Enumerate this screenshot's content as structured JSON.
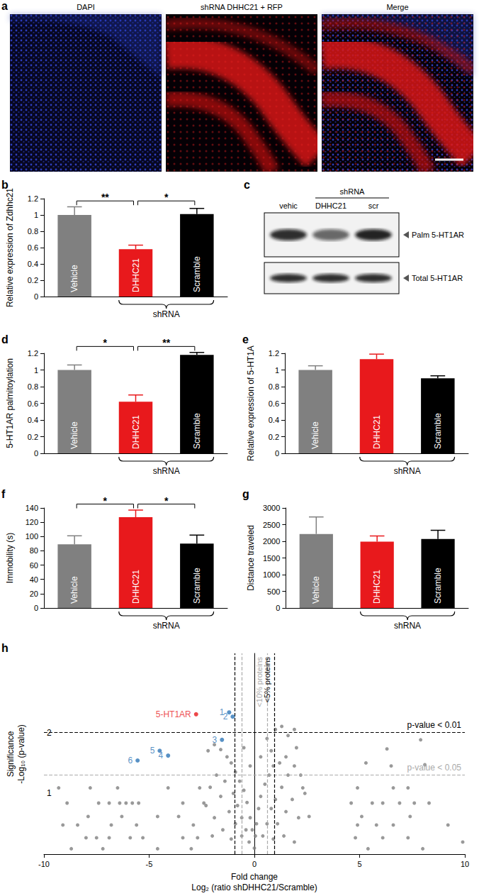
{
  "panels": {
    "a": {
      "letter": "a",
      "images": [
        {
          "label": "DAPI"
        },
        {
          "label": "shRNA DHHC21 + RFP"
        },
        {
          "label": "Merge"
        }
      ]
    },
    "c": {
      "letter": "c",
      "lanes": [
        "vehic",
        "DHHC21",
        "scr"
      ],
      "group": {
        "label": "shRNA",
        "lanes": [
          "DHHC21",
          "scr"
        ]
      },
      "bands": [
        "Palm 5-HT1AR",
        "Total 5-HT1AR"
      ]
    }
  },
  "chart_data": [
    {
      "panel": "b",
      "type": "bar",
      "ylabel": "Relative expression of Zdhhc21",
      "categories": [
        "Vehicle",
        "DHHC21",
        "Scramble"
      ],
      "values": [
        1.0,
        0.58,
        1.01
      ],
      "errors": [
        0.1,
        0.05,
        0.07
      ],
      "colors": [
        "#808080",
        "#e8191c",
        "#000000"
      ],
      "group": {
        "label": "shRNA",
        "categories": [
          "DHHC21",
          "Scramble"
        ]
      },
      "significance": [
        {
          "pair": [
            "Vehicle",
            "DHHC21"
          ],
          "label": "**"
        },
        {
          "pair": [
            "DHHC21",
            "Scramble"
          ],
          "label": "*"
        }
      ],
      "ylim": [
        0,
        1.2
      ],
      "yticks": [
        0,
        0.2,
        0.4,
        0.6,
        0.8,
        1,
        1.2
      ]
    },
    {
      "panel": "d",
      "type": "bar",
      "ylabel": "5-HT1AR palmitoylation",
      "categories": [
        "Vehicle",
        "DHHC21",
        "Scramble"
      ],
      "values": [
        1.0,
        0.62,
        1.18
      ],
      "errors": [
        0.06,
        0.08,
        0.03
      ],
      "colors": [
        "#808080",
        "#e8191c",
        "#000000"
      ],
      "group": {
        "label": "shRNA",
        "categories": [
          "DHHC21",
          "Scramble"
        ]
      },
      "significance": [
        {
          "pair": [
            "Vehicle",
            "DHHC21"
          ],
          "label": "*"
        },
        {
          "pair": [
            "DHHC21",
            "Scramble"
          ],
          "label": "**"
        }
      ],
      "ylim": [
        0,
        1.2
      ],
      "yticks": [
        0,
        0.2,
        0.4,
        0.6,
        0.8,
        1,
        1.2
      ]
    },
    {
      "panel": "e",
      "type": "bar",
      "ylabel": "Relative expression of 5-HT1A",
      "categories": [
        "Vehicle",
        "DHHC21",
        "Scramble"
      ],
      "values": [
        1.0,
        1.13,
        0.9
      ],
      "errors": [
        0.05,
        0.06,
        0.03
      ],
      "colors": [
        "#808080",
        "#e8191c",
        "#000000"
      ],
      "group": {
        "label": "shRNA",
        "categories": [
          "DHHC21",
          "Scramble"
        ]
      },
      "significance": [],
      "ylim": [
        0,
        1.2
      ],
      "yticks": [
        0,
        0.2,
        0.4,
        0.6,
        0.8,
        1,
        1.2
      ]
    },
    {
      "panel": "f",
      "type": "bar",
      "ylabel": "Immobility (s)",
      "categories": [
        "Vehicle",
        "DHHC21",
        "Scramble"
      ],
      "values": [
        89,
        127,
        90
      ],
      "errors": [
        12,
        10,
        12
      ],
      "colors": [
        "#808080",
        "#e8191c",
        "#000000"
      ],
      "group": {
        "label": "shRNA",
        "categories": [
          "DHHC21",
          "Scramble"
        ]
      },
      "significance": [
        {
          "pair": [
            "Vehicle",
            "DHHC21"
          ],
          "label": "*"
        },
        {
          "pair": [
            "DHHC21",
            "Scramble"
          ],
          "label": "*"
        }
      ],
      "ylim": [
        0,
        140
      ],
      "yticks": [
        0,
        20,
        40,
        60,
        80,
        100,
        120,
        140
      ]
    },
    {
      "panel": "g",
      "type": "bar",
      "ylabel": "Distance traveled",
      "categories": [
        "Vehicle",
        "DHHC21",
        "Scramble"
      ],
      "values": [
        2220,
        1990,
        2070
      ],
      "errors": [
        510,
        170,
        260
      ],
      "colors": [
        "#808080",
        "#e8191c",
        "#000000"
      ],
      "group": {
        "label": "shRNA",
        "categories": [
          "DHHC21",
          "Scramble"
        ]
      },
      "significance": [],
      "ylim": [
        0,
        3000
      ],
      "yticks": [
        0,
        500,
        1000,
        1500,
        2000,
        2500,
        3000
      ]
    },
    {
      "panel": "h",
      "type": "scatter",
      "xlabel": [
        "Fold change",
        "Log₂ (ratio shDHHC21/Scramble)"
      ],
      "ylabel": [
        "Significance",
        "-Log₁₀ (p-value)"
      ],
      "color": "#808080",
      "x": [
        -9.3,
        -7.8,
        -6.5,
        -4.1,
        -2.6,
        -8.9,
        -7.4,
        -6.9,
        -6.4,
        -6.1,
        -5.8,
        -5.5,
        -3.4,
        -2.4,
        -7.9,
        -6.3,
        -4.6,
        -3.6,
        -9.1,
        -8.4,
        -6.8,
        -5.6,
        -2.9,
        -8.0,
        -7.5,
        -6.9,
        -5.9,
        -5.3,
        -3.4,
        -2.7,
        -8.7,
        -7.2,
        -4.6,
        -3.0,
        6.3,
        7.9,
        5.3,
        6.5,
        8.1,
        4.9,
        6.6,
        7.3,
        2.3,
        4.6,
        5.6,
        6.1,
        6.9,
        7.6,
        8.3,
        5.1,
        7.4,
        2.6,
        4.9,
        5.8,
        6.6,
        9.2,
        4.8,
        7.3,
        9.9,
        6.1,
        5.4,
        8.0,
        1.0,
        1.3,
        1.6,
        1.9,
        2.0,
        1.5,
        1.2,
        0.9,
        0.7,
        0.5,
        0.3,
        0.2,
        0.1,
        0.05,
        0.0,
        -0.1,
        -0.2,
        -0.35,
        -0.5,
        -0.7,
        -0.9,
        -1.1,
        -1.3,
        -1.6,
        -1.9,
        -2.2,
        -1.4,
        -1.0,
        -0.8,
        -0.6,
        -0.4,
        -0.25,
        -1.8,
        -2.1,
        -1.6,
        -1.2,
        -0.9,
        -0.6,
        -2.3,
        -1.9,
        -1.5,
        -1.1,
        -2.0,
        0.4,
        0.6,
        0.8,
        1.0,
        1.3,
        1.6,
        1.9,
        2.2,
        1.1,
        1.5,
        1.8,
        2.1,
        0.9,
        1.4,
        1.9,
        2.4,
        0.3,
        -0.2,
        0.6,
        -0.5,
        0.8
      ],
      "values": [
        1.09,
        1.09,
        1.09,
        1.09,
        1.09,
        0.84,
        0.84,
        0.84,
        0.84,
        0.84,
        0.84,
        0.84,
        0.84,
        0.84,
        0.62,
        0.62,
        0.62,
        0.62,
        0.48,
        0.48,
        0.48,
        0.48,
        0.48,
        0.27,
        0.27,
        0.27,
        0.27,
        0.27,
        0.27,
        0.27,
        0.09,
        0.09,
        0.09,
        0.09,
        1.73,
        1.88,
        1.5,
        1.45,
        1.47,
        1.09,
        1.09,
        1.09,
        1.09,
        0.84,
        0.84,
        0.84,
        0.84,
        0.84,
        0.84,
        0.62,
        0.62,
        0.62,
        0.48,
        0.48,
        0.48,
        0.48,
        0.27,
        0.27,
        0.2,
        0.27,
        0.09,
        0.09,
        2.05,
        2.1,
        1.95,
        2.05,
        1.75,
        1.6,
        1.5,
        1.45,
        1.3,
        1.15,
        0.95,
        0.75,
        0.5,
        0.3,
        0.1,
        0.4,
        0.6,
        0.85,
        1.05,
        1.2,
        1.35,
        1.5,
        1.6,
        1.72,
        1.8,
        1.7,
        1.2,
        1.0,
        0.8,
        0.6,
        0.4,
        0.2,
        1.3,
        1.1,
        0.95,
        0.7,
        0.5,
        0.3,
        0.8,
        0.6,
        0.4,
        0.25,
        0.3,
        0.3,
        0.5,
        0.75,
        0.9,
        1.1,
        1.3,
        1.45,
        1.3,
        0.5,
        0.7,
        0.9,
        0.6,
        0.25,
        0.3,
        0.2,
        1.0,
        1.6,
        1.45,
        1.9,
        1.75,
        1.7
      ],
      "annotations": [
        {
          "text": "5-HT1AR",
          "x": -2.77,
          "y": 2.3,
          "color": "#e8191c"
        },
        {
          "text": "1",
          "x": -1.2,
          "y": 2.33,
          "color": "#2e75b6"
        },
        {
          "text": "2",
          "x": -1.03,
          "y": 2.26,
          "color": "#2e75b6"
        },
        {
          "text": "3",
          "x": -1.54,
          "y": 1.88,
          "color": "#2e75b6"
        },
        {
          "text": "4",
          "x": -4.1,
          "y": 1.62,
          "color": "#2e75b6"
        },
        {
          "text": "5",
          "x": -4.5,
          "y": 1.7,
          "color": "#2e75b6"
        },
        {
          "text": "6",
          "x": -5.55,
          "y": 1.54,
          "color": "#2e75b6"
        }
      ],
      "hlines": [
        {
          "value": 2,
          "label": "p-value < 0.01",
          "color": "#000000"
        },
        {
          "value": 1.3,
          "label": "p-value < 0.05",
          "color": "#aaaaaa"
        }
      ],
      "vlines": [
        {
          "value": -0.95,
          "color": "#000000"
        },
        {
          "value": 0.95,
          "label": "<5% proteins",
          "color": "#000000"
        },
        {
          "value": -0.6,
          "color": "#aaaaaa"
        },
        {
          "value": 0.6,
          "label": "<10% proteins",
          "color": "#aaaaaa"
        }
      ],
      "xlim": [
        -10,
        10
      ],
      "xticks": [
        -10,
        -5,
        0,
        5,
        10
      ],
      "ylim": [
        0,
        3.3
      ],
      "yticks": [
        1,
        2
      ]
    }
  ]
}
